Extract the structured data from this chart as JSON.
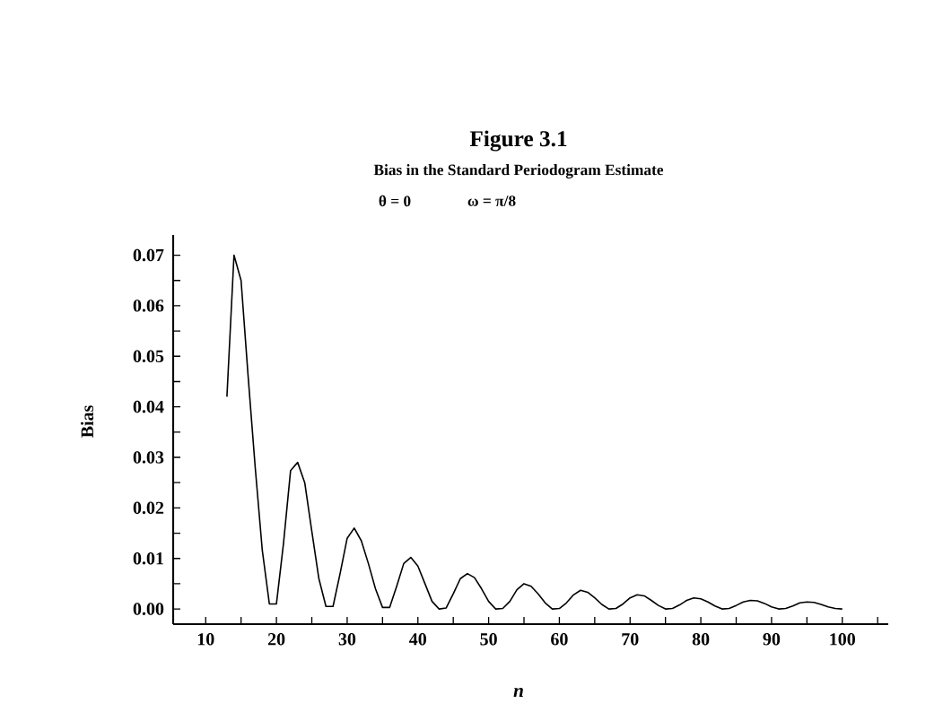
{
  "chart_data": {
    "type": "line",
    "title": "Figure 3.1",
    "subtitle": "Bias in the Standard Periodogram Estimate",
    "annotations": [
      "θ = 0",
      "ω = π/8"
    ],
    "xlabel": "*n*",
    "ylabel": "Bias",
    "x": [
      13,
      14,
      15,
      16,
      17,
      18,
      19,
      20,
      21,
      22,
      23,
      24,
      25,
      26,
      27,
      28,
      29,
      30,
      31,
      32,
      33,
      34,
      35,
      36,
      37,
      38,
      39,
      40,
      41,
      42,
      43,
      44,
      45,
      46,
      47,
      48,
      49,
      50,
      51,
      52,
      53,
      54,
      55,
      56,
      57,
      58,
      59,
      60,
      61,
      62,
      63,
      64,
      65,
      66,
      67,
      68,
      69,
      70,
      71,
      72,
      73,
      74,
      75,
      76,
      77,
      78,
      79,
      80,
      81,
      82,
      83,
      84,
      85,
      86,
      87,
      88,
      89,
      90,
      91,
      92,
      93,
      94,
      95,
      96,
      97,
      98,
      99,
      100
    ],
    "series": [
      {
        "color": "#000000",
        "values": [
          0.042,
          0.07,
          0.065,
          0.046,
          0.028,
          0.0116,
          0.001,
          0.001,
          0.013,
          0.0274,
          0.029,
          0.025,
          0.0154,
          0.006,
          0.0005,
          0.0005,
          0.007,
          0.014,
          0.016,
          0.0135,
          0.009,
          0.004,
          0.0003,
          0.0003,
          0.0045,
          0.009,
          0.0102,
          0.0085,
          0.005,
          0.0015,
          0.0,
          0.0002,
          0.003,
          0.006,
          0.007,
          0.0062,
          0.004,
          0.0015,
          0.0,
          0.0001,
          0.0015,
          0.0038,
          0.005,
          0.0045,
          0.003,
          0.0012,
          0.0,
          0.0001,
          0.0012,
          0.0028,
          0.0037,
          0.0033,
          0.0022,
          0.0009,
          0.0,
          0.0001,
          0.001,
          0.0022,
          0.0028,
          0.0026,
          0.0017,
          0.0007,
          0.0,
          0.0001,
          0.0008,
          0.0017,
          0.0022,
          0.002,
          0.0014,
          0.0006,
          0.0,
          0.0001,
          0.0007,
          0.0014,
          0.0017,
          0.0016,
          0.0011,
          0.0004,
          0.0,
          0.0001,
          0.0006,
          0.0012,
          0.0014,
          0.0013,
          0.0009,
          0.0004,
          0.0001,
          0.0
        ]
      }
    ],
    "xlim": [
      5.4,
      106.5
    ],
    "ylim": [
      -0.003,
      0.074
    ],
    "xticks": [
      10,
      {
        "value": 15,
        "label": null
      },
      20,
      {
        "value": 25,
        "label": null
      },
      30,
      {
        "value": 35,
        "label": null
      },
      40,
      {
        "value": 45,
        "label": null
      },
      50,
      {
        "value": 55,
        "label": null
      },
      60,
      {
        "value": 65,
        "label": null
      },
      70,
      {
        "value": 75,
        "label": null
      },
      80,
      {
        "value": 85,
        "label": null
      },
      90,
      {
        "value": 95,
        "label": null
      },
      100,
      {
        "value": 105,
        "label": null
      }
    ],
    "yticks": [
      {
        "value": 0,
        "label": "0.00"
      },
      {
        "value": 0.005,
        "label": null
      },
      {
        "value": 0.01,
        "label": "0.01"
      },
      {
        "value": 0.015,
        "label": null
      },
      {
        "value": 0.02,
        "label": "0.02"
      },
      {
        "value": 0.025,
        "label": null
      },
      {
        "value": 0.03,
        "label": "0.03"
      },
      {
        "value": 0.035,
        "label": null
      },
      {
        "value": 0.04,
        "label": "0.04"
      },
      {
        "value": 0.045,
        "label": null
      },
      {
        "value": 0.05,
        "label": "0.05"
      },
      {
        "value": 0.055,
        "label": null
      },
      {
        "value": 0.06,
        "label": "0.06"
      },
      {
        "value": 0.065,
        "label": null
      },
      {
        "value": 0.07,
        "label": "0.07"
      }
    ],
    "marker": "none",
    "line_style": "solid"
  }
}
